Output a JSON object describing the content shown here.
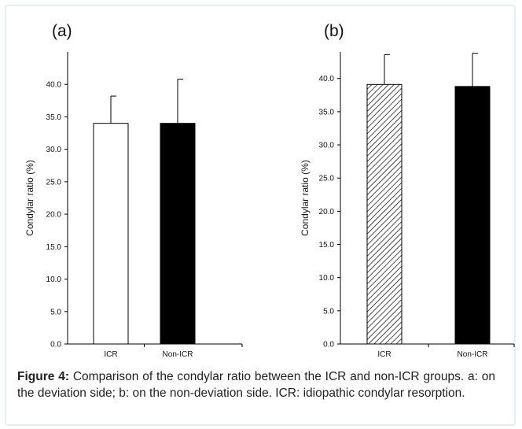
{
  "caption": {
    "label": "Figure 4:",
    "text": "Comparison of the condylar ratio between the ICR and non-ICR groups. a: on the deviation side; b: on the non-deviation side. ICR: idiopathic condylar resorption."
  },
  "colors": {
    "frame": "#e4f1f4",
    "icr_bar_a": "#ffffff",
    "non_icr_bar": "#000000",
    "axis": "#000000"
  },
  "chart_data": [
    {
      "panel": "(a)",
      "type": "bar",
      "categories": [
        "ICR",
        "Non-ICR"
      ],
      "values": [
        34.0,
        34.0
      ],
      "error": [
        4.2,
        6.8
      ],
      "fills": [
        "white",
        "black"
      ],
      "ylabel": "Condylar ratio (%)",
      "ylim": [
        0,
        45
      ],
      "yticks": [
        "0.0",
        "5.0",
        "10.0",
        "15.0",
        "20.0",
        "25.0",
        "30.0",
        "35.0",
        "40.0"
      ],
      "grid": false
    },
    {
      "panel": "(b)",
      "type": "bar",
      "categories": [
        "ICR",
        "Non-ICR"
      ],
      "values": [
        39.1,
        38.8
      ],
      "error": [
        4.5,
        5.0
      ],
      "fills": [
        "hatch",
        "black"
      ],
      "ylabel": "Condylar ratio (%)",
      "ylim": [
        0,
        44
      ],
      "yticks": [
        "0.0",
        "5.0",
        "10.0",
        "15.0",
        "20.0",
        "25.0",
        "30.0",
        "35.0",
        "40.0"
      ],
      "grid": false
    }
  ]
}
